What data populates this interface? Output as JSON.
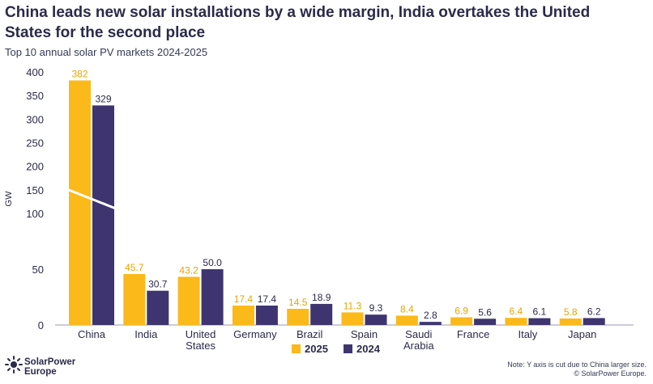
{
  "title": "China leads new solar installations by a wide margin, India overtakes the United States for the second place",
  "subtitle": "Top 10 annual solar PV markets 2024-2025",
  "branding": {
    "line1": "SolarPower",
    "line2": "Europe"
  },
  "note": {
    "line1": "Note: Y axis is cut due to China larger size.",
    "line2": "© SolarPower Europe."
  },
  "chart_data": {
    "type": "bar",
    "ylabel": "GW",
    "y_axis_break": true,
    "yticks": [
      0,
      50,
      100,
      150,
      200,
      250,
      300,
      350,
      400
    ],
    "categories": [
      [
        "China"
      ],
      [
        "India"
      ],
      [
        "United",
        "States"
      ],
      [
        "Germany"
      ],
      [
        "Brazil"
      ],
      [
        "Spain"
      ],
      [
        "Saudi",
        "Arabia"
      ],
      [
        "France"
      ],
      [
        "Italy"
      ],
      [
        "Japan"
      ]
    ],
    "series": [
      {
        "name": "2025",
        "color": "#fbb91a",
        "label_color": "#e8a400",
        "values": [
          382,
          45.7,
          43.2,
          17.4,
          14.5,
          11.3,
          8.4,
          6.9,
          6.4,
          5.8
        ],
        "labels": [
          "382",
          "45.7",
          "43.2",
          "17.4",
          "14.5",
          "11.3",
          "8.4",
          "6.9",
          "6.4",
          "5.8"
        ]
      },
      {
        "name": "2024",
        "color": "#3e3570",
        "label_color": "#2a2a4a",
        "values": [
          329,
          30.7,
          50.0,
          17.4,
          18.9,
          9.3,
          2.8,
          5.6,
          6.1,
          6.2
        ],
        "labels": [
          "329",
          "30.7",
          "50.0",
          "17.4",
          "18.9",
          "9.3",
          "2.8",
          "5.6",
          "6.1",
          "6.2"
        ]
      }
    ],
    "legend": "bottom-center",
    "grid": false
  }
}
